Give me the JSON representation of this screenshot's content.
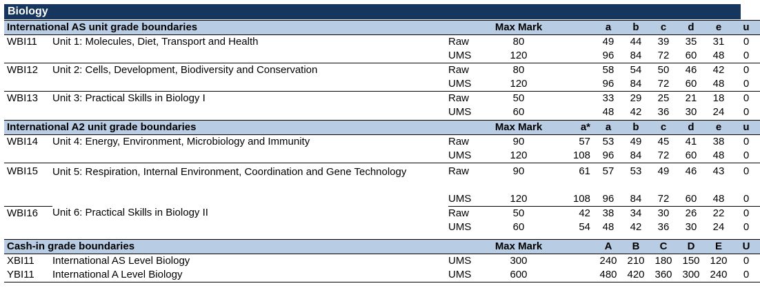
{
  "title": "Biology",
  "sections": {
    "as_units": {
      "heading": "International AS unit grade boundaries",
      "max_mark_label": "Max Mark",
      "grades": [
        "",
        "a",
        "b",
        "c",
        "d",
        "e",
        "u"
      ],
      "units": [
        {
          "code": "WBI11",
          "title": "Unit 1: Molecules, Diet, Transport and Health",
          "raw": {
            "label": "Raw",
            "max": "80",
            "astar": "",
            "g": [
              "49",
              "44",
              "39",
              "35",
              "31",
              "0"
            ]
          },
          "ums": {
            "label": "UMS",
            "max": "120",
            "astar": "",
            "g": [
              "96",
              "84",
              "72",
              "60",
              "48",
              "0"
            ]
          }
        },
        {
          "code": "WBI12",
          "title": "Unit 2: Cells, Development, Biodiversity and Conservation",
          "raw": {
            "label": "Raw",
            "max": "80",
            "astar": "",
            "g": [
              "58",
              "54",
              "50",
              "46",
              "42",
              "0"
            ]
          },
          "ums": {
            "label": "UMS",
            "max": "120",
            "astar": "",
            "g": [
              "96",
              "84",
              "72",
              "60",
              "48",
              "0"
            ]
          }
        },
        {
          "code": "WBI13",
          "title": "Unit 3: Practical Skills in Biology I",
          "raw": {
            "label": "Raw",
            "max": "50",
            "astar": "",
            "g": [
              "33",
              "29",
              "25",
              "21",
              "18",
              "0"
            ]
          },
          "ums": {
            "label": "UMS",
            "max": "60",
            "astar": "",
            "g": [
              "48",
              "42",
              "36",
              "30",
              "24",
              "0"
            ]
          }
        }
      ]
    },
    "a2_units": {
      "heading": "International A2 unit grade boundaries",
      "max_mark_label": "Max Mark",
      "grades": [
        "a*",
        "a",
        "b",
        "c",
        "d",
        "e",
        "u"
      ],
      "units": [
        {
          "code": "WBI14",
          "title": "Unit 4: Energy, Environment, Microbiology and Immunity",
          "raw": {
            "label": "Raw",
            "max": "90",
            "astar": "57",
            "g": [
              "53",
              "49",
              "45",
              "41",
              "38",
              "0"
            ]
          },
          "ums": {
            "label": "UMS",
            "max": "120",
            "astar": "108",
            "g": [
              "96",
              "84",
              "72",
              "60",
              "48",
              "0"
            ]
          }
        },
        {
          "code": "WBI15",
          "title": "Unit 5: Respiration, Internal Environment, Coordination and Gene Technology",
          "raw": {
            "label": "Raw",
            "max": "90",
            "astar": "61",
            "g": [
              "57",
              "53",
              "49",
              "46",
              "43",
              "0"
            ]
          },
          "ums": {
            "label": "UMS",
            "max": "120",
            "astar": "108",
            "g": [
              "96",
              "84",
              "72",
              "60",
              "48",
              "0"
            ]
          }
        },
        {
          "code": "WBI16",
          "title": "Unit 6: Practical Skills in Biology II",
          "raw": {
            "label": "Raw",
            "max": "50",
            "astar": "42",
            "g": [
              "38",
              "34",
              "30",
              "26",
              "22",
              "0"
            ]
          },
          "ums": {
            "label": "UMS",
            "max": "60",
            "astar": "54",
            "g": [
              "48",
              "42",
              "36",
              "30",
              "24",
              "0"
            ]
          }
        }
      ]
    },
    "cash_in": {
      "heading": "Cash-in grade boundaries",
      "max_mark_label": "Max Mark",
      "grades": [
        "",
        "A",
        "B",
        "C",
        "D",
        "E",
        "U"
      ],
      "rows": [
        {
          "code": "XBI11",
          "title": "International AS Level Biology",
          "type": "UMS",
          "max": "300",
          "g": [
            "240",
            "210",
            "180",
            "150",
            "120",
            "0"
          ]
        },
        {
          "code": "YBI11",
          "title": "International A Level Biology",
          "type": "UMS",
          "max": "600",
          "g": [
            "480",
            "420",
            "360",
            "300",
            "240",
            "0"
          ]
        }
      ]
    }
  }
}
